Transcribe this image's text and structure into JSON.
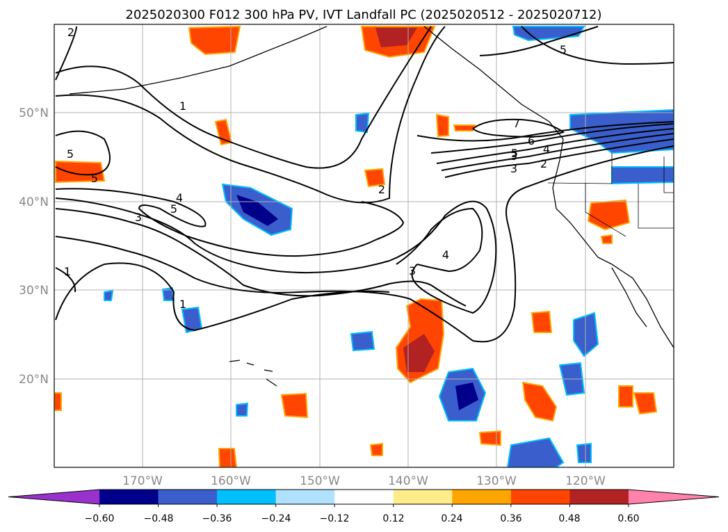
{
  "title": "2025020300 F012 300 hPa PV, IVT Landfall PC (2025020512 - 2025020712)",
  "map": {
    "lon_range": [
      -180,
      -110
    ],
    "lat_range": [
      10,
      60
    ],
    "lon_ticks": [
      "170°W",
      "160°W",
      "150°W",
      "140°W",
      "130°W",
      "120°W"
    ],
    "lat_ticks": [
      "50°N",
      "40°N",
      "30°N",
      "20°N"
    ],
    "gridlines": true
  },
  "colorbar": {
    "ticks": [
      "−0.60",
      "−0.48",
      "−0.36",
      "−0.24",
      "−0.12",
      "0.12",
      "0.24",
      "0.36",
      "0.48",
      "0.60"
    ],
    "colors": [
      "#9932cc",
      "#00008b",
      "#3a5fcd",
      "#00bfff",
      "#b0e2ff",
      "#ffffff",
      "#ffec8b",
      "#ffa500",
      "#ff4500",
      "#b22222",
      "#ff82ab"
    ]
  },
  "contour_labels": [
    "2",
    "1",
    "5",
    "5",
    "4",
    "5",
    "3",
    "1",
    "1",
    "2",
    "3",
    "4",
    "3",
    "2",
    "3",
    "4",
    "5",
    "6",
    "7",
    "5"
  ]
}
